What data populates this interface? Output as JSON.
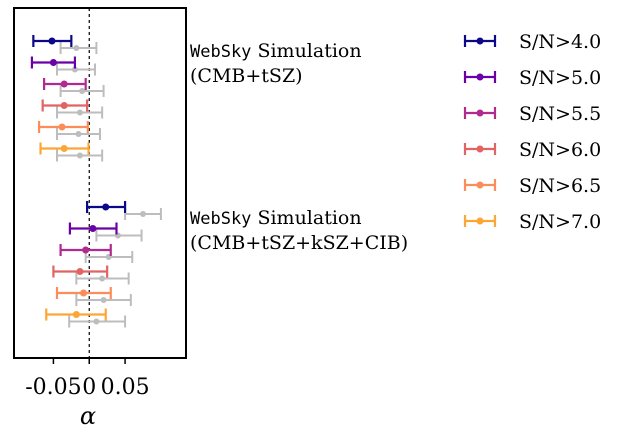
{
  "chart_data": {
    "type": "scatter",
    "xlabel": "α",
    "xlim": [
      -0.105,
      0.135
    ],
    "xticks": [
      -0.05,
      0,
      0.05
    ],
    "xtick_labels": [
      "-0.05",
      "0",
      "0.05"
    ],
    "reference_line_x": 0,
    "colors": {
      "S/N>4.0": "#0d0887",
      "S/N>5.0": "#6a00a8",
      "S/N>5.5": "#b12a90",
      "S/N>6.0": "#e16462",
      "S/N>6.5": "#fc8d59",
      "S/N>7.0": "#fca636",
      "comparison": "#bdbdbd"
    },
    "annotations": [
      {
        "mono": "WebSky",
        "rest": " Simulation",
        "line2": "(CMB+tSZ)"
      },
      {
        "mono": "WebSky",
        "rest": " Simulation",
        "line2": "(CMB+tSZ+kSZ+CIB)"
      }
    ],
    "legend": [
      "S/N>4.0",
      "S/N>5.0",
      "S/N>5.5",
      "S/N>6.0",
      "S/N>6.5",
      "S/N>7.0"
    ],
    "groups": [
      {
        "panel": "CMB+tSZ",
        "series": [
          {
            "name": "S/N>4.0",
            "value": -0.052,
            "lo": -0.078,
            "hi": -0.025,
            "cmp": -0.018,
            "cmp_lo": -0.04,
            "cmp_hi": 0.01
          },
          {
            "name": "S/N>5.0",
            "value": -0.05,
            "lo": -0.08,
            "hi": -0.02,
            "cmp": -0.02,
            "cmp_lo": -0.045,
            "cmp_hi": 0.008
          },
          {
            "name": "S/N>5.5",
            "value": -0.035,
            "lo": -0.063,
            "hi": -0.005,
            "cmp": -0.01,
            "cmp_lo": -0.04,
            "cmp_hi": 0.02
          },
          {
            "name": "S/N>6.0",
            "value": -0.035,
            "lo": -0.065,
            "hi": -0.003,
            "cmp": -0.013,
            "cmp_lo": -0.045,
            "cmp_hi": 0.018
          },
          {
            "name": "S/N>6.5",
            "value": -0.038,
            "lo": -0.07,
            "hi": -0.002,
            "cmp": -0.015,
            "cmp_lo": -0.045,
            "cmp_hi": 0.015
          },
          {
            "name": "S/N>7.0",
            "value": -0.035,
            "lo": -0.068,
            "hi": -0.001,
            "cmp": -0.013,
            "cmp_lo": -0.045,
            "cmp_hi": 0.018
          }
        ]
      },
      {
        "panel": "CMB+tSZ+kSZ+CIB",
        "series": [
          {
            "name": "S/N>4.0",
            "value": 0.023,
            "lo": -0.003,
            "hi": 0.05,
            "cmp": 0.075,
            "cmp_lo": 0.05,
            "cmp_hi": 0.1
          },
          {
            "name": "S/N>5.0",
            "value": 0.005,
            "lo": -0.027,
            "hi": 0.038,
            "cmp": 0.04,
            "cmp_lo": 0.01,
            "cmp_hi": 0.073
          },
          {
            "name": "S/N>5.5",
            "value": -0.005,
            "lo": -0.04,
            "hi": 0.03,
            "cmp": 0.027,
            "cmp_lo": -0.005,
            "cmp_hi": 0.06
          },
          {
            "name": "S/N>6.0",
            "value": -0.013,
            "lo": -0.05,
            "hi": 0.025,
            "cmp": 0.018,
            "cmp_lo": -0.018,
            "cmp_hi": 0.055
          },
          {
            "name": "S/N>6.5",
            "value": -0.008,
            "lo": -0.045,
            "hi": 0.03,
            "cmp": 0.02,
            "cmp_lo": -0.018,
            "cmp_hi": 0.058
          },
          {
            "name": "S/N>7.0",
            "value": -0.018,
            "lo": -0.06,
            "hi": 0.023,
            "cmp": 0.01,
            "cmp_lo": -0.028,
            "cmp_hi": 0.05
          }
        ]
      }
    ]
  }
}
